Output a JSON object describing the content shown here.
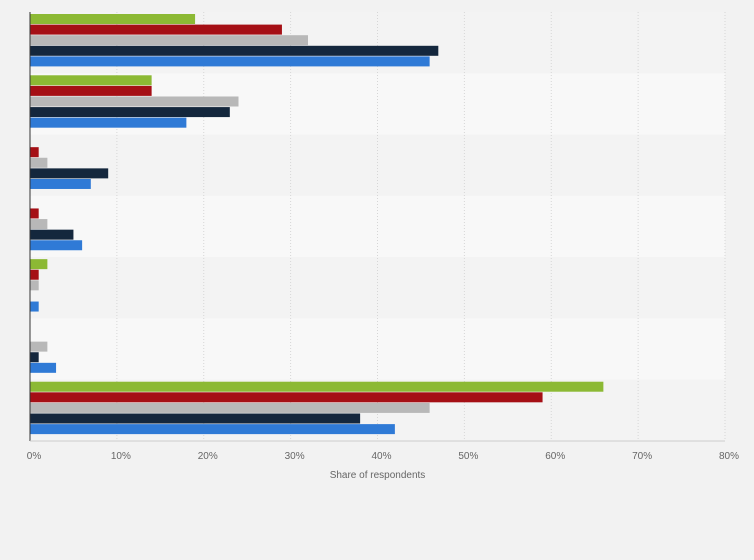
{
  "chart_data": {
    "type": "bar",
    "orientation": "horizontal",
    "title": "",
    "xlabel": "Share of respondents",
    "ylabel": "",
    "xlim": [
      0,
      80
    ],
    "x_ticks": [
      0,
      10,
      20,
      30,
      40,
      50,
      60,
      70,
      80
    ],
    "tick_suffix": "%",
    "grid": "vertical dashed",
    "legend": "none",
    "categories": [
      "",
      "",
      "",
      "",
      "",
      "",
      ""
    ],
    "series": [
      {
        "color": "#8cb934",
        "values": [
          19,
          14,
          0,
          0,
          2,
          0,
          66
        ]
      },
      {
        "color": "#a50f15",
        "values": [
          29,
          14,
          1,
          1,
          1,
          0,
          59
        ]
      },
      {
        "color": "#b8b8b8",
        "values": [
          32,
          24,
          2,
          2,
          1,
          2,
          46
        ]
      },
      {
        "color": "#14273d",
        "values": [
          47,
          23,
          9,
          5,
          0,
          1,
          38
        ]
      },
      {
        "color": "#2f7ad6",
        "values": [
          46,
          18,
          7,
          6,
          1,
          3,
          42
        ]
      }
    ]
  }
}
